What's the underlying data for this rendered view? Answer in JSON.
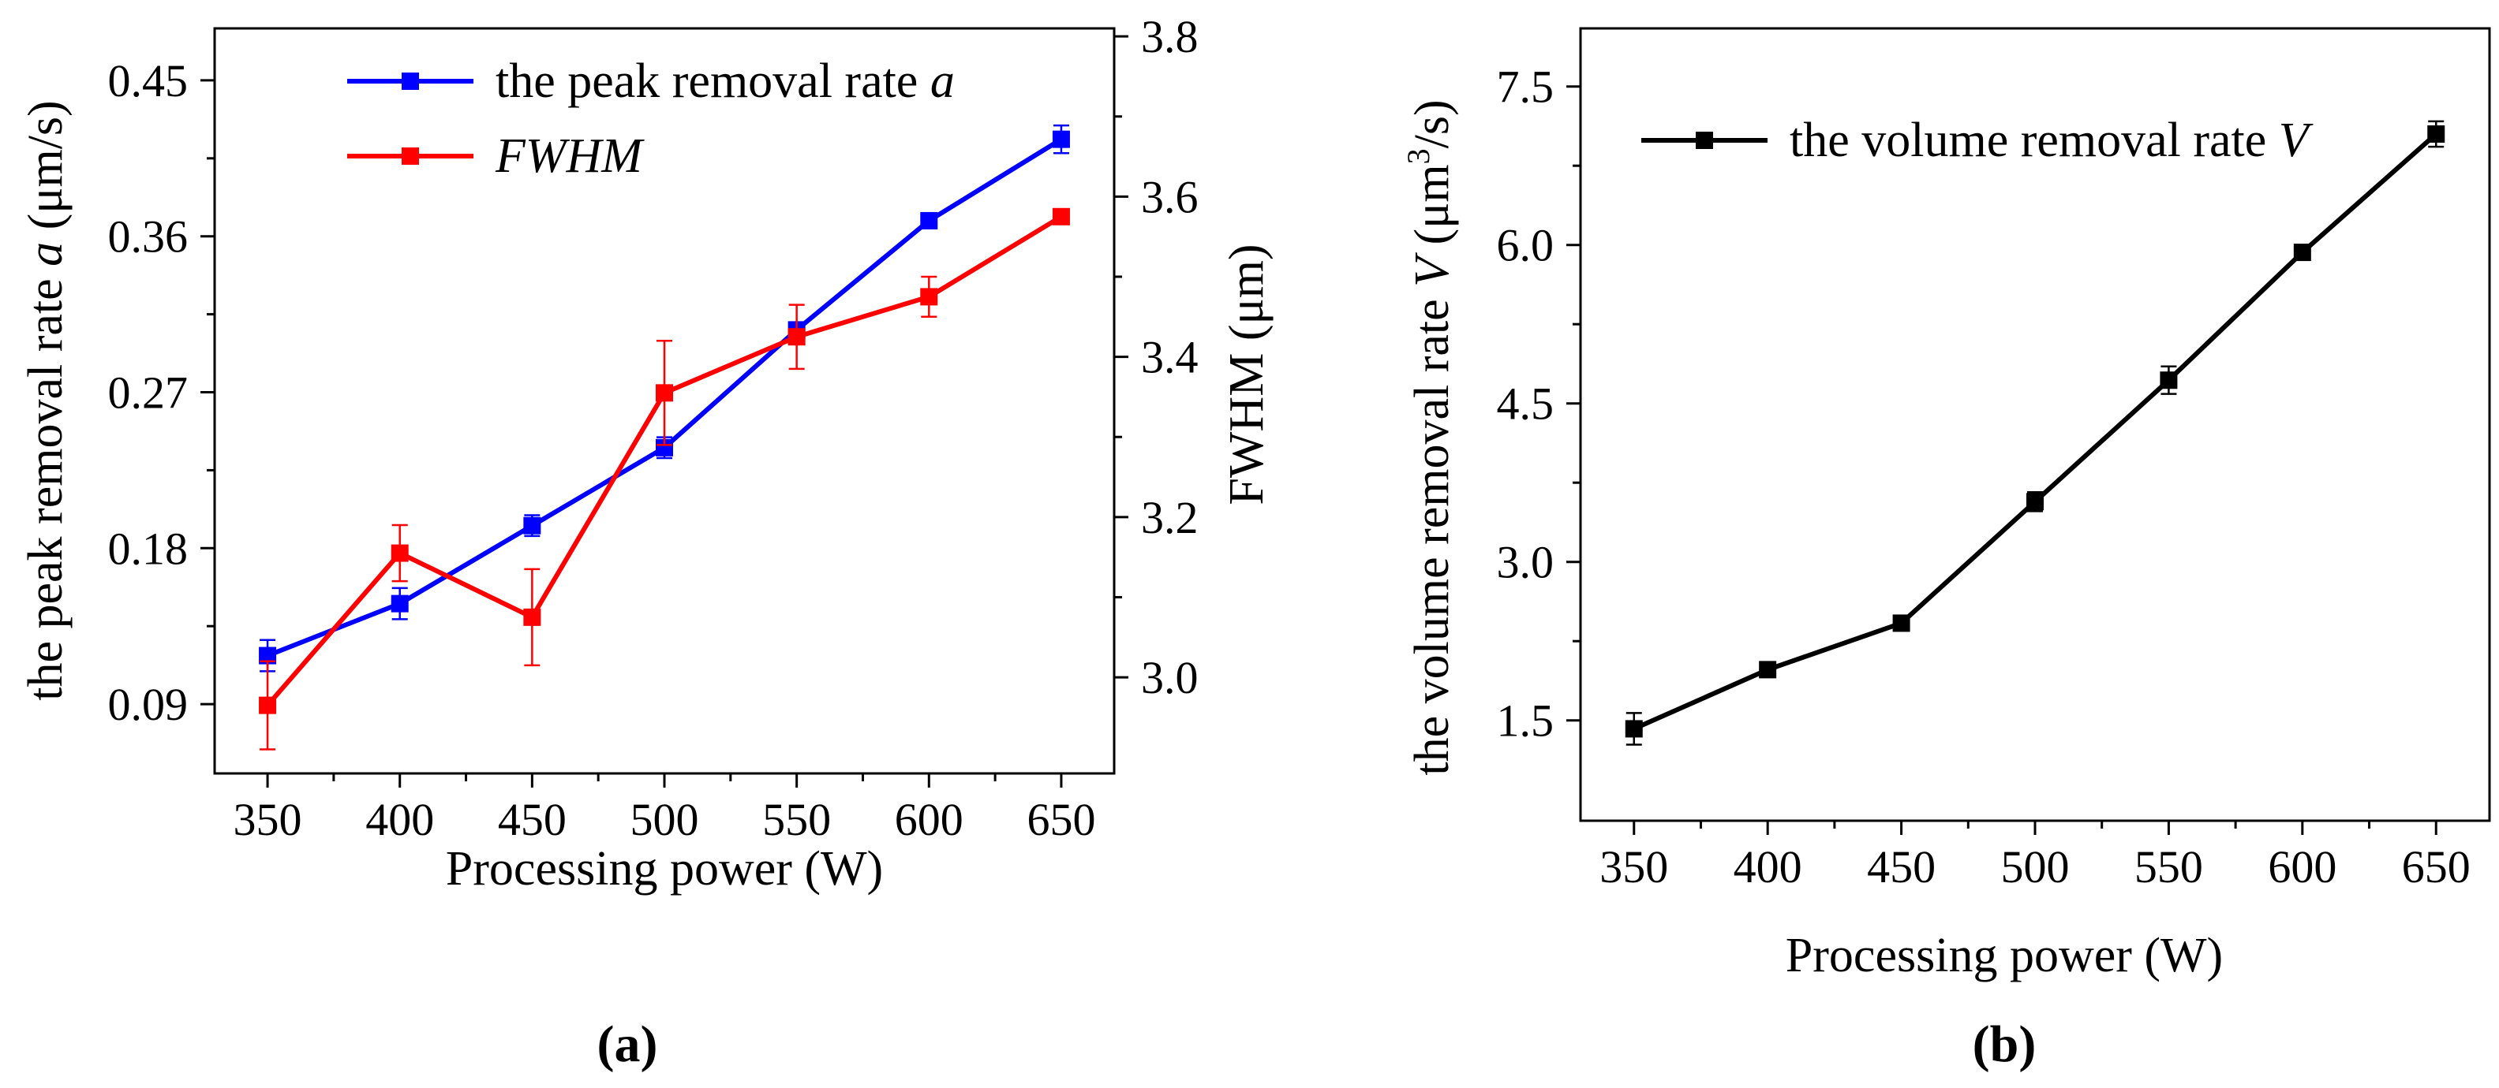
{
  "figure": {
    "panel_a_label": "(a)",
    "panel_b_label": "(b)"
  },
  "chart_data": [
    {
      "type": "line",
      "panel": "(a)",
      "title": "",
      "xlabel": "Processing power (W)",
      "ylabel": "the peak removal rate a (μm/s)",
      "ylabel_parts": {
        "pre": "the peak removal rate ",
        "italic": "a",
        "post": " (μm/s)"
      },
      "y2label": "FWHM (μm)",
      "x": [
        350,
        400,
        450,
        500,
        550,
        600,
        650
      ],
      "xlim": [
        330,
        670
      ],
      "xticks": [
        350,
        400,
        450,
        500,
        550,
        600,
        650
      ],
      "ylim": [
        0.05,
        0.48
      ],
      "yticks": [
        "0.09",
        "0.18",
        "0.27",
        "0.36",
        "0.45"
      ],
      "y2lim": [
        2.88,
        3.81
      ],
      "y2ticks": [
        "3.0",
        "3.2",
        "3.4",
        "3.6",
        "3.8"
      ],
      "legend_position": "top",
      "series": [
        {
          "name": "the peak removal rate a",
          "legend_parts": {
            "pre": "the peak removal rate ",
            "italic": "a"
          },
          "axis": "left",
          "color": "#0000ff",
          "values": [
            0.118,
            0.148,
            0.193,
            0.238,
            0.306,
            0.369,
            0.416
          ],
          "errors": [
            0.009,
            0.009,
            0.006,
            0.006,
            0.004,
            0.003,
            0.008
          ]
        },
        {
          "name": "FWHM",
          "legend_parts": {
            "pre": "",
            "italic": "FWHM"
          },
          "axis": "right",
          "color": "#ff0000",
          "values": [
            2.965,
            3.155,
            3.075,
            3.355,
            3.425,
            3.475,
            3.575
          ],
          "errors": [
            0.055,
            0.035,
            0.06,
            0.065,
            0.04,
            0.025,
            0.006
          ]
        }
      ]
    },
    {
      "type": "line",
      "panel": "(b)",
      "title": "",
      "xlabel": "Processing power (W)",
      "ylabel": "the volume removal rate V (μm3/s)",
      "ylabel_parts": {
        "pre": "the volume removal rate ",
        "italic": "V",
        "mid": " (μm",
        "sup": "3",
        "post": "/s)"
      },
      "x": [
        350,
        400,
        450,
        500,
        550,
        600,
        650
      ],
      "xlim": [
        330,
        670
      ],
      "xticks": [
        350,
        400,
        450,
        500,
        550,
        600,
        650
      ],
      "ylim": [
        0.55,
        8.05
      ],
      "yticks": [
        "1.5",
        "3.0",
        "4.5",
        "6.0",
        "7.5"
      ],
      "legend_position": "top",
      "series": [
        {
          "name": "the volume removal rate V",
          "legend_parts": {
            "pre": "the volume removal rate ",
            "italic": "V"
          },
          "color": "#000000",
          "values": [
            1.42,
            1.98,
            2.42,
            3.57,
            4.72,
            5.93,
            7.05
          ],
          "errors": [
            0.15,
            0.05,
            0.05,
            0.09,
            0.13,
            0.04,
            0.12
          ]
        }
      ]
    }
  ]
}
